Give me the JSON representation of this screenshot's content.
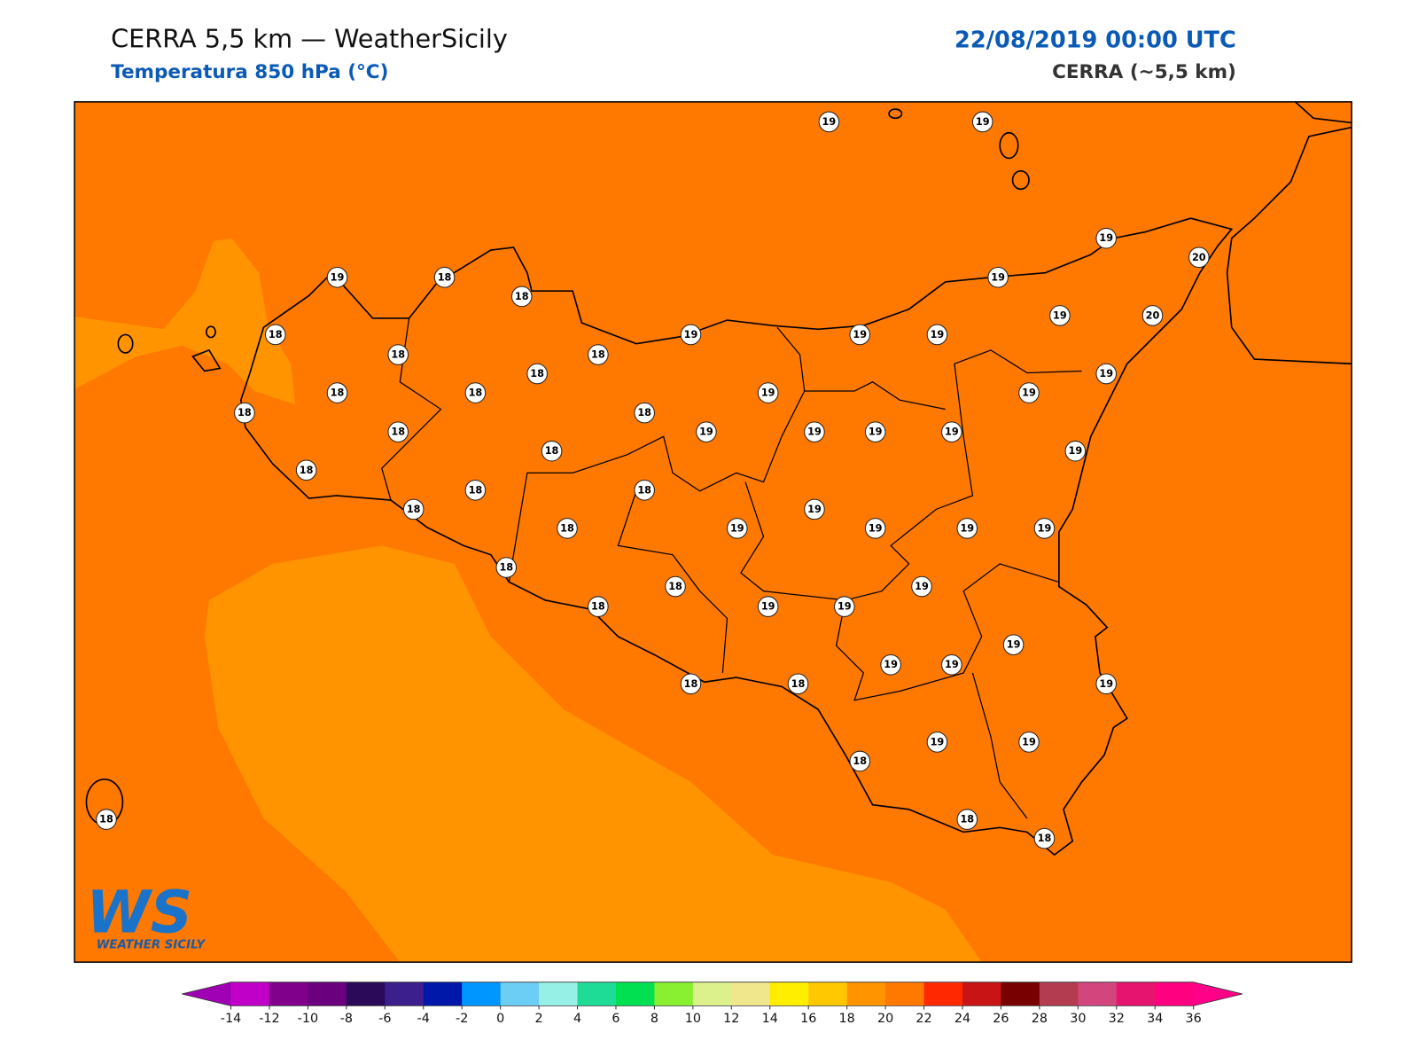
{
  "header": {
    "title": "CERRA 5,5 km — WeatherSicily",
    "subtitle": "Temperatura 850 hPa (°C)",
    "datetime": "22/08/2019 00:00 UTC",
    "model": "CERRA (~5,5 km)"
  },
  "stations": [
    19,
    19,
    19,
    20,
    19,
    18,
    18,
    19,
    19,
    20,
    18,
    19,
    19,
    19,
    18,
    18,
    18,
    19,
    18,
    18,
    19,
    19,
    18,
    18,
    18,
    19,
    19,
    19,
    19,
    18,
    19,
    18,
    18,
    18,
    18,
    19,
    18,
    19,
    19,
    19,
    19,
    19,
    18,
    18,
    18,
    19,
    19,
    19,
    19,
    19,
    19,
    18,
    18,
    19,
    19,
    18,
    18,
    18,
    18
  ],
  "field_colors": [
    "#ff7800",
    "#ff9400"
  ],
  "colorbar": {
    "ticks": [
      -14,
      -12,
      -10,
      -8,
      -6,
      -4,
      -2,
      0,
      2,
      4,
      6,
      8,
      10,
      12,
      14,
      16,
      18,
      20,
      22,
      24,
      26,
      28,
      30,
      32,
      34,
      36
    ],
    "colors": [
      "#c000c8",
      "#80008c",
      "#6a007e",
      "#2c0a5a",
      "#3c1e8c",
      "#0018aa",
      "#0096ff",
      "#6ccdf5",
      "#96f0e6",
      "#1edc96",
      "#00e050",
      "#88f030",
      "#dcf08c",
      "#f0e68c",
      "#ffee00",
      "#ffc800",
      "#ff9400",
      "#ff7800",
      "#ff2800",
      "#c81414",
      "#780000",
      "#b43c50",
      "#d2467d",
      "#e6146e",
      "#ff0080"
    ],
    "extend_colors": [
      "#a000b4",
      "#ff0088"
    ]
  },
  "logo": {
    "mark": "WS",
    "name": "WEATHER SICILY"
  }
}
